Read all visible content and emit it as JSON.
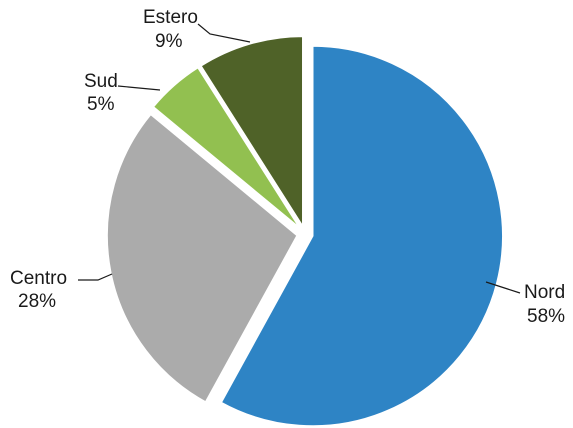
{
  "chart_data": {
    "type": "pie",
    "slices": [
      {
        "label": "Nord",
        "value": 58,
        "value_label": "58%",
        "color": "#2e84c5",
        "exploded": true
      },
      {
        "label": "Centro",
        "value": 28,
        "value_label": "28%",
        "color": "#ababab",
        "exploded": true
      },
      {
        "label": "Sud",
        "value": 5,
        "value_label": "5%",
        "color": "#92c050",
        "exploded": true
      },
      {
        "label": "Estero",
        "value": 9,
        "value_label": "9%",
        "color": "#4f6228",
        "exploded": true
      }
    ]
  }
}
